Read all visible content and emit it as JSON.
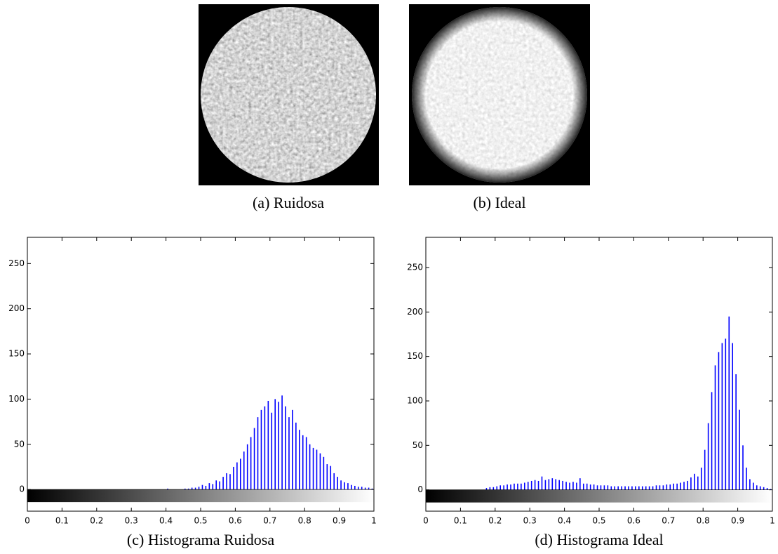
{
  "images": [
    {
      "caption": "(a) Ruidosa"
    },
    {
      "caption": "(b) Ideal"
    }
  ],
  "chart_data": [
    {
      "type": "histogram",
      "caption": "(c) Histograma Ruidosa",
      "color": "#0000ff",
      "grid": false,
      "xlim": [
        0,
        1
      ],
      "xticks": [
        0,
        0.1,
        0.2,
        0.3,
        0.4,
        0.5,
        0.6,
        0.7,
        0.8,
        0.9,
        1
      ],
      "ylim": [
        -24,
        279
      ],
      "yticks": [
        0,
        50,
        100,
        150,
        200,
        250
      ],
      "bins": [
        0,
        0.01,
        0.02,
        0.03,
        0.04,
        0.05,
        0.06,
        0.07,
        0.08,
        0.09,
        0.1,
        0.11,
        0.12,
        0.13,
        0.14,
        0.15,
        0.16,
        0.17,
        0.18,
        0.19,
        0.2,
        0.21,
        0.22,
        0.23,
        0.24,
        0.25,
        0.26,
        0.27,
        0.28,
        0.29,
        0.3,
        0.31,
        0.32,
        0.33,
        0.34,
        0.35,
        0.36,
        0.37,
        0.38,
        0.39,
        0.4,
        0.41,
        0.42,
        0.43,
        0.44,
        0.45,
        0.46,
        0.47,
        0.48,
        0.49,
        0.5,
        0.51,
        0.52,
        0.53,
        0.54,
        0.55,
        0.56,
        0.57,
        0.58,
        0.59,
        0.6,
        0.61,
        0.62,
        0.63,
        0.64,
        0.65,
        0.66,
        0.67,
        0.68,
        0.69,
        0.7,
        0.71,
        0.72,
        0.73,
        0.74,
        0.75,
        0.76,
        0.77,
        0.78,
        0.79,
        0.8,
        0.81,
        0.82,
        0.83,
        0.84,
        0.85,
        0.86,
        0.87,
        0.88,
        0.89,
        0.9,
        0.91,
        0.92,
        0.93,
        0.94,
        0.95,
        0.96,
        0.97,
        0.98,
        0.99,
        1
      ],
      "values": [
        0,
        0,
        0,
        0,
        0,
        0,
        0,
        0,
        0,
        0,
        0,
        0,
        0,
        0,
        0,
        0,
        0,
        0,
        0,
        0,
        0,
        0,
        0,
        0,
        0,
        0,
        0,
        0,
        0,
        0,
        0,
        0,
        0,
        0,
        0,
        0,
        0,
        0,
        0,
        0,
        1,
        0,
        0,
        0,
        0,
        1,
        1,
        2,
        2,
        3,
        5,
        4,
        7,
        6,
        10,
        9,
        14,
        18,
        17,
        25,
        30,
        34,
        42,
        50,
        58,
        68,
        80,
        88,
        92,
        98,
        85,
        100,
        97,
        104,
        92,
        80,
        88,
        74,
        66,
        60,
        58,
        50,
        46,
        44,
        40,
        36,
        28,
        26,
        18,
        14,
        10,
        8,
        7,
        5,
        4,
        3,
        3,
        2,
        2,
        1
      ]
    },
    {
      "type": "histogram",
      "caption": "(d) Histograma Ideal",
      "color": "#0000ff",
      "grid": false,
      "xlim": [
        0,
        1
      ],
      "xticks": [
        0,
        0.1,
        0.2,
        0.3,
        0.4,
        0.5,
        0.6,
        0.7,
        0.8,
        0.9,
        1
      ],
      "ylim": [
        -24,
        284
      ],
      "yticks": [
        0,
        50,
        100,
        150,
        200,
        250
      ],
      "bins": [
        0,
        0.01,
        0.02,
        0.03,
        0.04,
        0.05,
        0.06,
        0.07,
        0.08,
        0.09,
        0.1,
        0.11,
        0.12,
        0.13,
        0.14,
        0.15,
        0.16,
        0.17,
        0.18,
        0.19,
        0.2,
        0.21,
        0.22,
        0.23,
        0.24,
        0.25,
        0.26,
        0.27,
        0.28,
        0.29,
        0.3,
        0.31,
        0.32,
        0.33,
        0.34,
        0.35,
        0.36,
        0.37,
        0.38,
        0.39,
        0.4,
        0.41,
        0.42,
        0.43,
        0.44,
        0.45,
        0.46,
        0.47,
        0.48,
        0.49,
        0.5,
        0.51,
        0.52,
        0.53,
        0.54,
        0.55,
        0.56,
        0.57,
        0.58,
        0.59,
        0.6,
        0.61,
        0.62,
        0.63,
        0.64,
        0.65,
        0.66,
        0.67,
        0.68,
        0.69,
        0.7,
        0.71,
        0.72,
        0.73,
        0.74,
        0.75,
        0.76,
        0.77,
        0.78,
        0.79,
        0.8,
        0.81,
        0.82,
        0.83,
        0.84,
        0.85,
        0.86,
        0.87,
        0.88,
        0.89,
        0.9,
        0.91,
        0.92,
        0.93,
        0.94,
        0.95,
        0.96,
        0.97,
        0.98,
        0.99,
        1
      ],
      "values": [
        0,
        0,
        0,
        0,
        0,
        0,
        0,
        0,
        0,
        0,
        0,
        0,
        0,
        0,
        0,
        0,
        0,
        2,
        3,
        3,
        4,
        5,
        5,
        6,
        6,
        7,
        7,
        7,
        8,
        9,
        10,
        11,
        10,
        15,
        11,
        12,
        13,
        12,
        11,
        10,
        9,
        8,
        9,
        8,
        13,
        7,
        7,
        6,
        6,
        5,
        5,
        5,
        5,
        4,
        4,
        4,
        4,
        4,
        4,
        4,
        4,
        4,
        4,
        4,
        4,
        4,
        5,
        5,
        5,
        6,
        6,
        7,
        7,
        8,
        9,
        10,
        14,
        18,
        15,
        25,
        45,
        75,
        110,
        140,
        155,
        165,
        170,
        195,
        165,
        130,
        90,
        50,
        25,
        12,
        8,
        5,
        4,
        3,
        2,
        1
      ]
    }
  ]
}
